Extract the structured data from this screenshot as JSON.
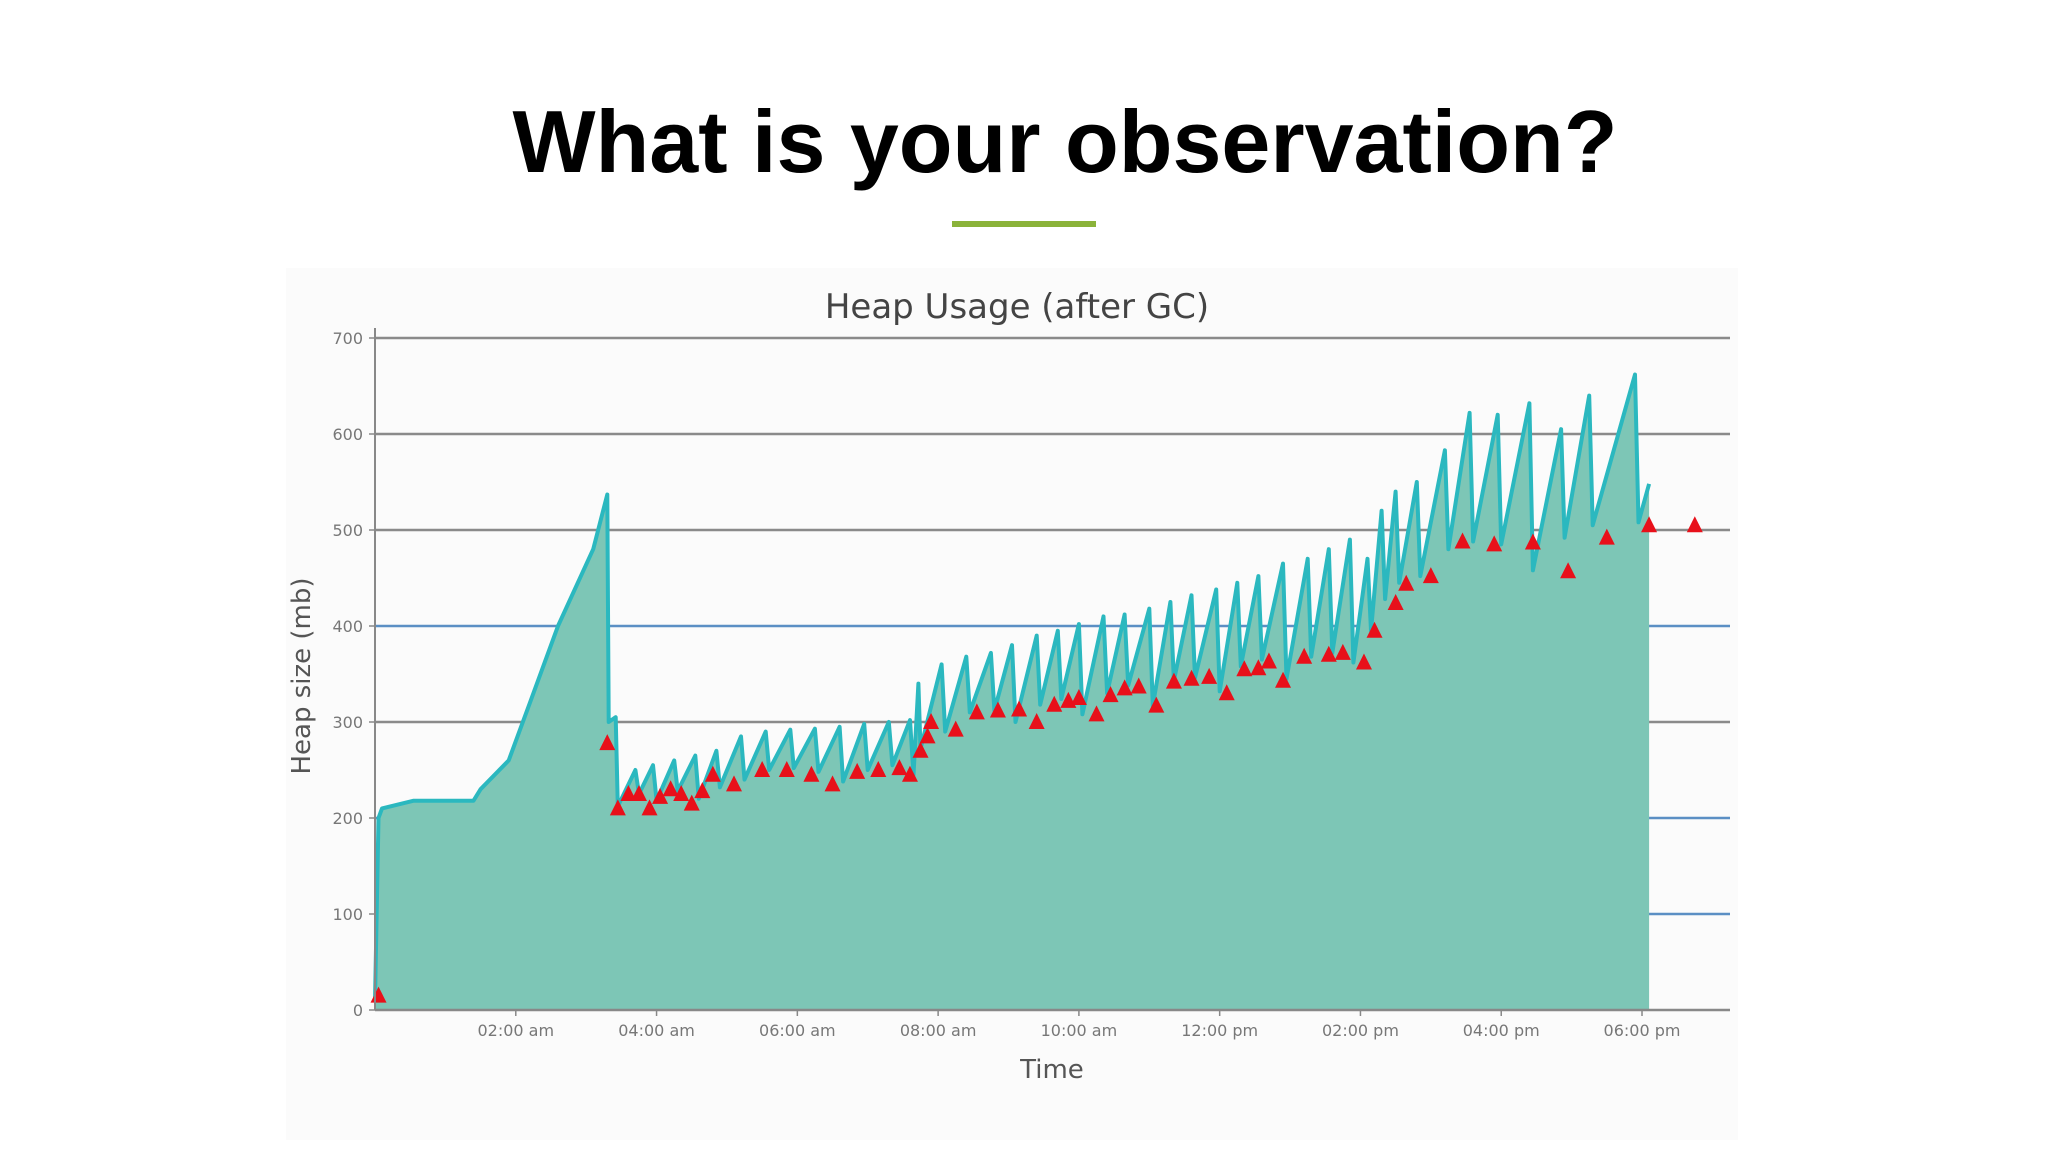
{
  "slide": {
    "title": "What is your observation?",
    "accent_color": "#8bb33a"
  },
  "chart_data": {
    "type": "area",
    "title": "Heap Usage (after GC)",
    "xlabel": "Time",
    "ylabel": "Heap size (mb)",
    "ylim": [
      0,
      700
    ],
    "yticks": [
      0,
      100,
      200,
      300,
      400,
      500,
      600,
      700
    ],
    "xlim_hours": [
      0,
      19.25
    ],
    "xticks": [
      {
        "hour": 2,
        "label": "02:00 am"
      },
      {
        "hour": 4,
        "label": "04:00 am"
      },
      {
        "hour": 6,
        "label": "06:00 am"
      },
      {
        "hour": 8,
        "label": "08:00 am"
      },
      {
        "hour": 10,
        "label": "10:00 am"
      },
      {
        "hour": 12,
        "label": "12:00 pm"
      },
      {
        "hour": 14,
        "label": "02:00 pm"
      },
      {
        "hour": 16,
        "label": "04:00 pm"
      },
      {
        "hour": 18,
        "label": "06:00 pm"
      }
    ],
    "grid": true,
    "colors": {
      "fill": "#7dc6b6",
      "line": "#2bb8bf",
      "marker": "#e8101a",
      "grid_dark": "#8a8a8a",
      "grid_blue": "#5b8fc4"
    },
    "series": [
      {
        "name": "Heap usage",
        "points": [
          [
            0,
            10
          ],
          [
            0.05,
            200
          ],
          [
            0.1,
            210
          ],
          [
            0.55,
            218
          ],
          [
            1.4,
            218
          ],
          [
            1.5,
            230
          ],
          [
            1.9,
            260
          ],
          [
            2.2,
            320
          ],
          [
            2.6,
            400
          ],
          [
            3.1,
            480
          ],
          [
            3.3,
            537
          ],
          [
            3.32,
            300
          ],
          [
            3.42,
            305
          ],
          [
            3.45,
            212
          ],
          [
            3.7,
            250
          ],
          [
            3.75,
            225
          ],
          [
            3.95,
            255
          ],
          [
            4.0,
            218
          ],
          [
            4.25,
            260
          ],
          [
            4.3,
            228
          ],
          [
            4.55,
            265
          ],
          [
            4.6,
            220
          ],
          [
            4.85,
            270
          ],
          [
            4.9,
            232
          ],
          [
            5.2,
            285
          ],
          [
            5.25,
            240
          ],
          [
            5.55,
            290
          ],
          [
            5.6,
            250
          ],
          [
            5.9,
            292
          ],
          [
            5.95,
            252
          ],
          [
            6.25,
            293
          ],
          [
            6.3,
            248
          ],
          [
            6.6,
            295
          ],
          [
            6.65,
            238
          ],
          [
            6.95,
            298
          ],
          [
            7.0,
            250
          ],
          [
            7.3,
            300
          ],
          [
            7.35,
            255
          ],
          [
            7.6,
            302
          ],
          [
            7.65,
            245
          ],
          [
            7.72,
            340
          ],
          [
            7.75,
            272
          ],
          [
            8.05,
            360
          ],
          [
            8.1,
            290
          ],
          [
            8.4,
            368
          ],
          [
            8.45,
            310
          ],
          [
            8.75,
            372
          ],
          [
            8.8,
            312
          ],
          [
            9.05,
            380
          ],
          [
            9.1,
            300
          ],
          [
            9.4,
            390
          ],
          [
            9.45,
            318
          ],
          [
            9.7,
            395
          ],
          [
            9.75,
            324
          ],
          [
            10.0,
            402
          ],
          [
            10.05,
            308
          ],
          [
            10.35,
            410
          ],
          [
            10.4,
            330
          ],
          [
            10.65,
            412
          ],
          [
            10.7,
            338
          ],
          [
            11.0,
            418
          ],
          [
            11.05,
            317
          ],
          [
            11.3,
            425
          ],
          [
            11.35,
            343
          ],
          [
            11.6,
            432
          ],
          [
            11.65,
            346
          ],
          [
            11.95,
            438
          ],
          [
            12.0,
            332
          ],
          [
            12.25,
            445
          ],
          [
            12.3,
            358
          ],
          [
            12.55,
            452
          ],
          [
            12.6,
            365
          ],
          [
            12.9,
            465
          ],
          [
            12.95,
            345
          ],
          [
            13.25,
            470
          ],
          [
            13.3,
            368
          ],
          [
            13.55,
            480
          ],
          [
            13.6,
            372
          ],
          [
            13.85,
            490
          ],
          [
            13.9,
            362
          ],
          [
            14.1,
            470
          ],
          [
            14.15,
            395
          ],
          [
            14.3,
            520
          ],
          [
            14.35,
            428
          ],
          [
            14.5,
            540
          ],
          [
            14.55,
            445
          ],
          [
            14.8,
            550
          ],
          [
            14.85,
            452
          ],
          [
            15.2,
            583
          ],
          [
            15.25,
            480
          ],
          [
            15.55,
            622
          ],
          [
            15.6,
            488
          ],
          [
            15.95,
            620
          ],
          [
            16.0,
            485
          ],
          [
            16.4,
            632
          ],
          [
            16.45,
            458
          ],
          [
            16.85,
            605
          ],
          [
            16.9,
            492
          ],
          [
            17.25,
            640
          ],
          [
            17.3,
            505
          ],
          [
            17.9,
            662
          ],
          [
            17.95,
            508
          ],
          [
            18.1,
            548
          ],
          [
            18.1,
            0
          ]
        ]
      }
    ],
    "gc_events": [
      [
        0.05,
        15
      ],
      [
        3.3,
        278
      ],
      [
        3.45,
        210
      ],
      [
        3.6,
        225
      ],
      [
        3.75,
        225
      ],
      [
        3.9,
        210
      ],
      [
        4.05,
        222
      ],
      [
        4.2,
        230
      ],
      [
        4.35,
        225
      ],
      [
        4.5,
        215
      ],
      [
        4.65,
        228
      ],
      [
        4.8,
        245
      ],
      [
        5.1,
        235
      ],
      [
        5.5,
        250
      ],
      [
        5.85,
        250
      ],
      [
        6.2,
        245
      ],
      [
        6.5,
        235
      ],
      [
        6.85,
        248
      ],
      [
        7.15,
        250
      ],
      [
        7.45,
        252
      ],
      [
        7.6,
        245
      ],
      [
        7.75,
        270
      ],
      [
        7.85,
        285
      ],
      [
        7.9,
        300
      ],
      [
        8.25,
        292
      ],
      [
        8.55,
        310
      ],
      [
        8.85,
        312
      ],
      [
        9.15,
        313
      ],
      [
        9.4,
        300
      ],
      [
        9.65,
        318
      ],
      [
        9.85,
        322
      ],
      [
        10.0,
        325
      ],
      [
        10.25,
        308
      ],
      [
        10.45,
        328
      ],
      [
        10.65,
        335
      ],
      [
        10.85,
        337
      ],
      [
        11.1,
        317
      ],
      [
        11.35,
        342
      ],
      [
        11.6,
        345
      ],
      [
        11.85,
        347
      ],
      [
        12.1,
        330
      ],
      [
        12.35,
        355
      ],
      [
        12.55,
        356
      ],
      [
        12.7,
        363
      ],
      [
        12.9,
        343
      ],
      [
        13.2,
        368
      ],
      [
        13.55,
        370
      ],
      [
        13.75,
        372
      ],
      [
        14.05,
        362
      ],
      [
        14.2,
        395
      ],
      [
        14.5,
        424
      ],
      [
        14.65,
        444
      ],
      [
        15.0,
        452
      ],
      [
        15.45,
        488
      ],
      [
        15.9,
        485
      ],
      [
        16.45,
        487
      ],
      [
        16.95,
        457
      ],
      [
        17.5,
        492
      ],
      [
        18.1,
        505
      ],
      [
        18.75,
        505
      ]
    ]
  }
}
